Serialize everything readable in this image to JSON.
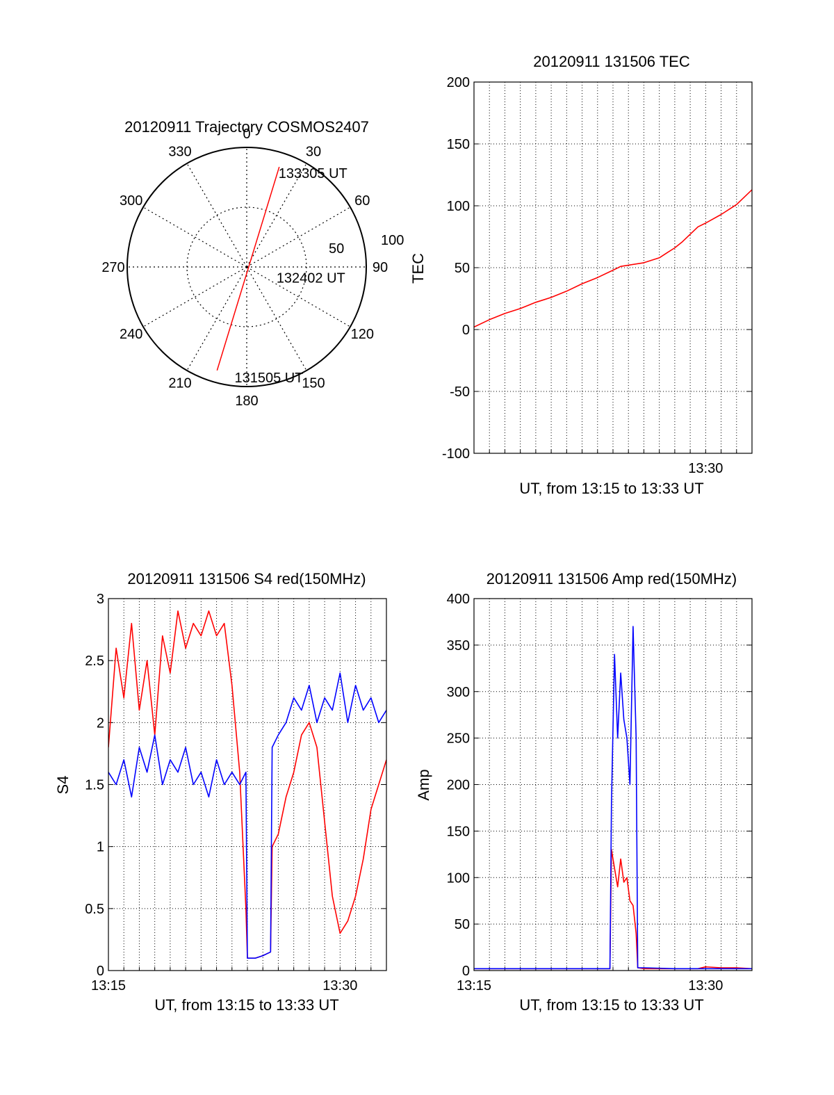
{
  "chart_data": [
    {
      "id": "trajectory",
      "type": "polar",
      "title": "20120911 Trajectory COSMOS2407",
      "angle_labels": [
        "0",
        "30",
        "60",
        "90",
        "120",
        "150",
        "180",
        "210",
        "240",
        "270",
        "300",
        "330"
      ],
      "radius_labels": [
        "50",
        "100"
      ],
      "rlim": [
        0,
        100
      ],
      "grid": true,
      "series_color": "#ff0000",
      "track": {
        "start": {
          "azimuth": 196,
          "zenith": 90
        },
        "end": {
          "azimuth": 18,
          "zenith": 88
        }
      },
      "annotations": [
        {
          "text": "133305 UT",
          "azimuth": 23,
          "zenith": 86
        },
        {
          "text": "132402 UT",
          "azimuth": 105,
          "zenith": 33
        },
        {
          "text": "131505 UT",
          "azimuth": 182,
          "zenith": 92
        }
      ]
    },
    {
      "id": "tec",
      "type": "line",
      "title": "20120911 131506 TEC",
      "xlabel": "UT, from 13:15 to 13:33 UT",
      "ylabel": "TEC",
      "xlim": [
        15.0,
        33.0
      ],
      "ylim": [
        -100,
        200
      ],
      "yticks": [
        -100,
        -50,
        0,
        50,
        100,
        150,
        200
      ],
      "xticks": [
        {
          "v": 30,
          "label": "13:30"
        }
      ],
      "grid": true,
      "series": [
        {
          "color": "#ff0000",
          "x": [
            15.0,
            16.0,
            17.0,
            18.0,
            19.0,
            19.5,
            20.0,
            21.0,
            22.0,
            23.0,
            24.0,
            24.5,
            25.0,
            26.0,
            27.0,
            27.5,
            28.0,
            28.5,
            29.0,
            29.5,
            30.0,
            31.0,
            32.0,
            33.0
          ],
          "y": [
            2,
            8,
            13,
            17,
            22,
            24,
            26,
            31,
            37,
            42,
            48,
            51,
            52,
            54,
            58,
            62,
            66,
            71,
            77,
            83,
            86,
            93,
            101,
            113
          ]
        }
      ]
    },
    {
      "id": "s4",
      "type": "line",
      "title": "20120911 131506 S4 red(150MHz)",
      "xlabel": "UT, from 13:15 to 13:33 UT",
      "ylabel": "S4",
      "xlim": [
        15.0,
        33.0
      ],
      "ylim": [
        0,
        3
      ],
      "yticks": [
        0,
        0.5,
        1,
        1.5,
        2,
        2.5,
        3
      ],
      "ytick_labels": [
        "0",
        "0.5",
        "1",
        "1.5",
        "2",
        "2.5",
        "3"
      ],
      "xticks": [
        {
          "v": 15,
          "label": "13:15"
        },
        {
          "v": 30,
          "label": "13:30"
        }
      ],
      "grid": true,
      "series": [
        {
          "color": "#ff0000",
          "x": [
            15.0,
            15.5,
            16.0,
            16.5,
            17.0,
            17.5,
            18.0,
            18.5,
            19.0,
            19.5,
            20.0,
            20.5,
            21.0,
            21.5,
            22.0,
            22.5,
            23.0,
            23.5,
            23.9,
            24.0,
            24.5,
            25.0,
            25.5,
            25.6,
            26.0,
            26.5,
            27.0,
            27.5,
            28.0,
            28.5,
            29.0,
            29.5,
            30.0,
            30.5,
            31.0,
            31.5,
            32.0,
            32.5,
            33.0
          ],
          "y": [
            1.8,
            2.6,
            2.2,
            2.8,
            2.1,
            2.5,
            1.9,
            2.7,
            2.4,
            2.9,
            2.6,
            2.8,
            2.7,
            2.9,
            2.7,
            2.8,
            2.3,
            1.6,
            0.5,
            0.1,
            0.1,
            0.12,
            0.15,
            1.0,
            1.1,
            1.4,
            1.6,
            1.9,
            2.0,
            1.8,
            1.2,
            0.6,
            0.3,
            0.4,
            0.6,
            0.9,
            1.3,
            1.5,
            1.7
          ]
        },
        {
          "color": "#0000ff",
          "x": [
            15.0,
            15.5,
            16.0,
            16.5,
            17.0,
            17.5,
            18.0,
            18.5,
            19.0,
            19.5,
            20.0,
            20.5,
            21.0,
            21.5,
            22.0,
            22.5,
            23.0,
            23.5,
            23.9,
            24.0,
            24.5,
            25.0,
            25.5,
            25.6,
            26.0,
            26.5,
            27.0,
            27.5,
            28.0,
            28.5,
            29.0,
            29.5,
            30.0,
            30.5,
            31.0,
            31.5,
            32.0,
            32.5,
            33.0
          ],
          "y": [
            1.6,
            1.5,
            1.7,
            1.4,
            1.8,
            1.6,
            1.9,
            1.5,
            1.7,
            1.6,
            1.8,
            1.5,
            1.6,
            1.4,
            1.7,
            1.5,
            1.6,
            1.5,
            1.6,
            0.1,
            0.1,
            0.12,
            0.15,
            1.8,
            1.9,
            2.0,
            2.2,
            2.1,
            2.3,
            2.0,
            2.2,
            2.1,
            2.4,
            2.0,
            2.3,
            2.1,
            2.2,
            2.0,
            2.1
          ]
        }
      ]
    },
    {
      "id": "amp",
      "type": "line",
      "title": "20120911 131506 Amp red(150MHz)",
      "xlabel": "UT, from 13:15 to 13:33 UT",
      "ylabel": "Amp",
      "xlim": [
        15.0,
        33.0
      ],
      "ylim": [
        0,
        400
      ],
      "yticks": [
        0,
        50,
        100,
        150,
        200,
        250,
        300,
        350,
        400
      ],
      "xticks": [
        {
          "v": 15,
          "label": "13:15"
        },
        {
          "v": 30,
          "label": "13:30"
        }
      ],
      "grid": true,
      "series": [
        {
          "color": "#ff0000",
          "x": [
            15.0,
            20.0,
            23.8,
            23.9,
            24.1,
            24.3,
            24.5,
            24.7,
            24.9,
            25.1,
            25.3,
            25.5,
            25.6,
            26.0,
            28.0,
            29.5,
            30.0,
            31.0,
            32.0,
            33.0
          ],
          "y": [
            2,
            2,
            2,
            130,
            110,
            90,
            120,
            95,
            100,
            75,
            70,
            40,
            3,
            2,
            2,
            2,
            4,
            3,
            3,
            2
          ]
        },
        {
          "color": "#0000ff",
          "x": [
            15.0,
            17.0,
            19.0,
            21.0,
            23.0,
            23.8,
            23.9,
            24.1,
            24.3,
            24.5,
            24.7,
            24.9,
            25.1,
            25.3,
            25.5,
            25.6,
            26.0,
            28.0,
            30.0,
            33.0
          ],
          "y": [
            2,
            2,
            2,
            2,
            2,
            2,
            180,
            340,
            250,
            320,
            270,
            250,
            200,
            370,
            250,
            3,
            3,
            2,
            2,
            2
          ]
        }
      ]
    }
  ]
}
